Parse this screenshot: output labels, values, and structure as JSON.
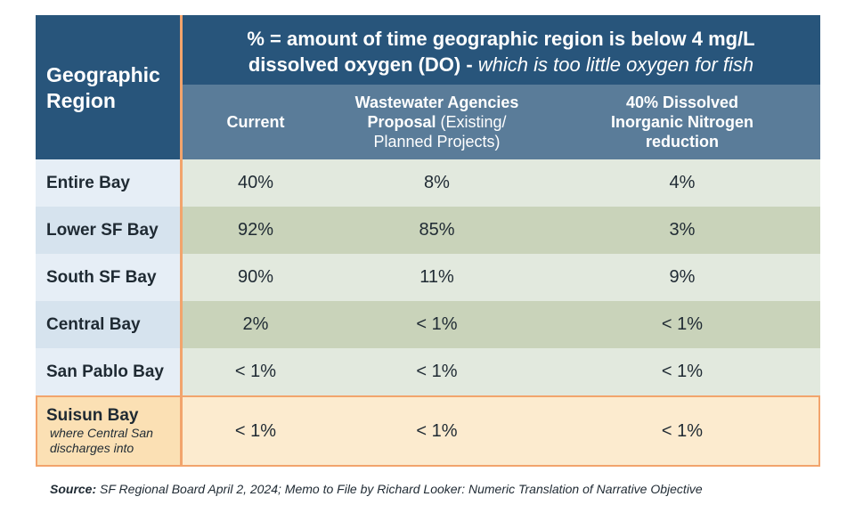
{
  "header": {
    "region_label_line1": "Geographic",
    "region_label_line2": "Region",
    "title_line1": "% = amount of time geographic region is below 4 mg/L",
    "title_line2_bold": "dissolved oxygen (DO) - ",
    "title_line2_italic": "which is too little oxygen for fish",
    "col1": "Current",
    "col2_bold": "Wastewater Agencies Proposal",
    "col2_normal_a": " (Existing/",
    "col2_normal_b": "Planned Projects)",
    "col3": "40% Dissolved Inorganic Nitrogen reduction"
  },
  "rows": [
    {
      "region": "Entire Bay",
      "current": "40%",
      "proposal": "8%",
      "din": "4%"
    },
    {
      "region": "Lower SF Bay",
      "current": "92%",
      "proposal": "85%",
      "din": "3%"
    },
    {
      "region": "South SF Bay",
      "current": "90%",
      "proposal": "11%",
      "din": "9%"
    },
    {
      "region": "Central Bay",
      "current": "2%",
      "proposal": "< 1%",
      "din": "< 1%"
    },
    {
      "region": "San Pablo Bay",
      "current": "< 1%",
      "proposal": "< 1%",
      "din": "< 1%"
    },
    {
      "region": "Suisun Bay",
      "note_line1": "where Central San",
      "note_line2": "discharges into",
      "current": "< 1%",
      "proposal": "< 1%",
      "din": "< 1%"
    }
  ],
  "source": {
    "label": "Source:",
    "text": " SF Regional Board April 2, 2024; Memo to File by Richard Looker: Numeric Translation of Narrative Objective"
  },
  "chart_data": {
    "type": "table",
    "title": "% = amount of time geographic region is below 4 mg/L dissolved oxygen (DO) - which is too little oxygen for fish",
    "columns": [
      "Geographic Region",
      "Current",
      "Wastewater Agencies Proposal (Existing/Planned Projects)",
      "40% Dissolved Inorganic Nitrogen reduction"
    ],
    "rows": [
      [
        "Entire Bay",
        "40%",
        "8%",
        "4%"
      ],
      [
        "Lower SF Bay",
        "92%",
        "85%",
        "3%"
      ],
      [
        "South SF Bay",
        "90%",
        "11%",
        "9%"
      ],
      [
        "Central Bay",
        "2%",
        "< 1%",
        "< 1%"
      ],
      [
        "San Pablo Bay",
        "< 1%",
        "< 1%",
        "< 1%"
      ],
      [
        "Suisun Bay",
        "< 1%",
        "< 1%",
        "< 1%"
      ]
    ],
    "highlight_color": "#f2a46c",
    "header_color": "#28557b",
    "subheader_color": "#5a7c99"
  }
}
